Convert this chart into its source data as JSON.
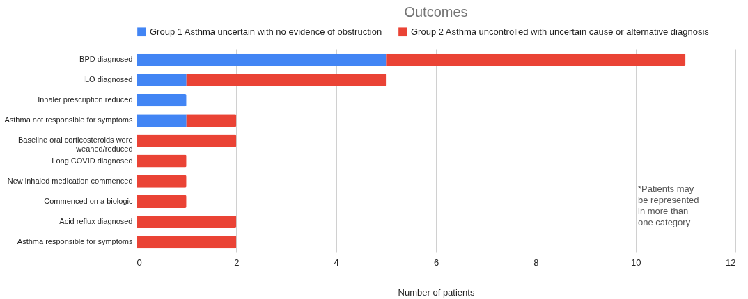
{
  "chart_data": {
    "type": "bar",
    "title": "Outcomes",
    "xlabel": "Number of patients",
    "orientation": "horizontal",
    "stacked": true,
    "categories": [
      "BPD diagnosed",
      "ILO diagnosed",
      "Inhaler prescription reduced",
      "Asthma not responsible for symptoms",
      "Baseline oral corticosteroids were weaned/reduced",
      "Long COVID diagnosed",
      "New inhaled medication commenced",
      "Commenced on a biologic",
      "Acid reflux diagnosed",
      "Asthma responsible for symptoms"
    ],
    "series": [
      {
        "name": "Group 1 Asthma uncertain with no evidence of obstruction",
        "color": "#4285f4",
        "values": [
          5,
          1,
          1,
          1,
          null,
          null,
          null,
          null,
          null,
          null
        ]
      },
      {
        "name": "Group 2 Asthma uncontrolled with uncertain cause or alternative diagnosis",
        "color": "#ea4335",
        "values": [
          6,
          4,
          null,
          1,
          2,
          1,
          1,
          1,
          2,
          2
        ]
      }
    ],
    "xlim": [
      0,
      12
    ],
    "xticks": [
      0,
      2,
      4,
      6,
      8,
      10,
      12
    ],
    "grid": "x",
    "legend": "top",
    "annotations": [
      "*Patients may\nbe represented\nin more than\none category"
    ]
  }
}
